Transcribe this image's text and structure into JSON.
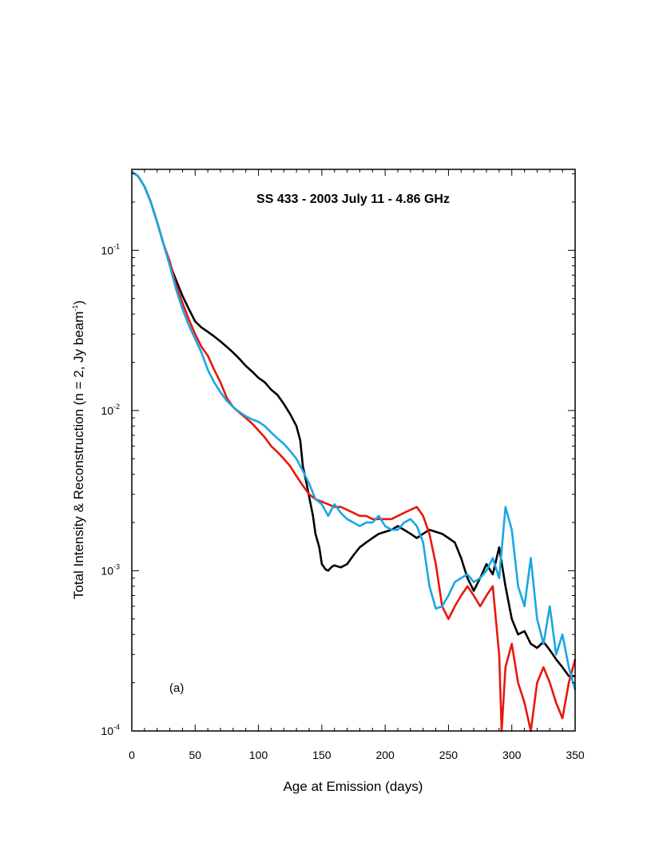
{
  "chart_data": {
    "type": "line",
    "title": "SS 433  -  2003 July 11  -  4.86 GHz",
    "xlabel": "Age at Emission (days)",
    "ylabel_main": "Total Intensity & Reconstruction (n = 2, Jy beam",
    "ylabel_sup": "-1",
    "ylabel_close": ")",
    "annotation": "(a)",
    "xlim": [
      0,
      350
    ],
    "ylim": [
      0.0001,
      0.32
    ],
    "y_scale": "log",
    "x_ticks": [
      0,
      50,
      100,
      150,
      200,
      250,
      300,
      350
    ],
    "x_tick_labels": [
      "0",
      "50",
      "100",
      "150",
      "200",
      "250",
      "300",
      "350"
    ],
    "y_ticks": [
      {
        "value": 0.1,
        "base": "10",
        "exp": "-1"
      },
      {
        "value": 0.01,
        "base": "10",
        "exp": "-2"
      },
      {
        "value": 0.001,
        "base": "10",
        "exp": "-3"
      },
      {
        "value": 0.0001,
        "base": "10",
        "exp": "-4"
      }
    ],
    "series": [
      {
        "color": "#000000",
        "x": [
          0,
          5,
          10,
          15,
          20,
          25,
          30,
          35,
          40,
          45,
          50,
          55,
          60,
          65,
          70,
          75,
          80,
          85,
          90,
          95,
          100,
          105,
          110,
          115,
          120,
          125,
          130,
          133,
          135,
          138,
          140,
          143,
          145,
          148,
          150,
          153,
          155,
          158,
          160,
          165,
          170,
          175,
          180,
          185,
          190,
          195,
          200,
          205,
          210,
          215,
          220,
          225,
          230,
          235,
          240,
          245,
          250,
          255,
          260,
          265,
          270,
          275,
          280,
          285,
          290,
          295,
          300,
          305,
          310,
          315,
          320,
          325,
          330,
          335,
          340,
          345,
          350
        ],
        "y": [
          0.31,
          0.29,
          0.25,
          0.2,
          0.15,
          0.11,
          0.082,
          0.065,
          0.052,
          0.043,
          0.036,
          0.033,
          0.031,
          0.029,
          0.027,
          0.025,
          0.023,
          0.021,
          0.019,
          0.0175,
          0.016,
          0.015,
          0.0135,
          0.0125,
          0.011,
          0.0095,
          0.008,
          0.0065,
          0.0045,
          0.0035,
          0.0029,
          0.0022,
          0.0017,
          0.0014,
          0.0011,
          0.00102,
          0.001,
          0.00106,
          0.00108,
          0.00105,
          0.0011,
          0.00125,
          0.0014,
          0.0015,
          0.0016,
          0.0017,
          0.00175,
          0.0018,
          0.0019,
          0.0018,
          0.0017,
          0.0016,
          0.0017,
          0.0018,
          0.00175,
          0.0017,
          0.0016,
          0.0015,
          0.0012,
          0.0009,
          0.00075,
          0.0009,
          0.0011,
          0.00095,
          0.0014,
          0.0008,
          0.0005,
          0.0004,
          0.00042,
          0.00035,
          0.00033,
          0.00036,
          0.00032,
          0.00028,
          0.00025,
          0.00022,
          0.00022
        ]
      },
      {
        "color": "#e8170d",
        "x": [
          0,
          5,
          10,
          15,
          20,
          25,
          30,
          35,
          40,
          45,
          50,
          55,
          60,
          65,
          70,
          75,
          80,
          85,
          90,
          95,
          100,
          105,
          110,
          115,
          120,
          125,
          130,
          135,
          140,
          145,
          150,
          155,
          160,
          165,
          170,
          175,
          180,
          185,
          190,
          195,
          200,
          205,
          210,
          215,
          220,
          225,
          230,
          235,
          240,
          245,
          250,
          255,
          260,
          265,
          270,
          275,
          280,
          285,
          290,
          292,
          295,
          300,
          305,
          310,
          315,
          320,
          325,
          330,
          335,
          340,
          345,
          350
        ],
        "y": [
          0.31,
          0.29,
          0.25,
          0.2,
          0.15,
          0.11,
          0.085,
          0.06,
          0.047,
          0.037,
          0.03,
          0.025,
          0.022,
          0.018,
          0.015,
          0.012,
          0.0105,
          0.0097,
          0.009,
          0.0083,
          0.0075,
          0.0068,
          0.006,
          0.0055,
          0.005,
          0.0045,
          0.0039,
          0.0034,
          0.003,
          0.0028,
          0.0027,
          0.0026,
          0.0025,
          0.0025,
          0.0024,
          0.0023,
          0.0022,
          0.0022,
          0.0021,
          0.0021,
          0.0021,
          0.0021,
          0.0022,
          0.0023,
          0.0024,
          0.0025,
          0.0022,
          0.0017,
          0.0011,
          0.0006,
          0.0005,
          0.0006,
          0.0007,
          0.0008,
          0.0007,
          0.0006,
          0.0007,
          0.0008,
          0.0003,
          0.0001,
          0.00025,
          0.00035,
          0.0002,
          0.00015,
          0.0001,
          0.0002,
          0.00025,
          0.0002,
          0.00015,
          0.00012,
          0.0002,
          0.00028
        ]
      },
      {
        "color": "#1ba6e4",
        "x": [
          0,
          5,
          10,
          15,
          20,
          25,
          30,
          35,
          40,
          45,
          50,
          55,
          60,
          65,
          70,
          75,
          80,
          85,
          90,
          95,
          100,
          105,
          110,
          115,
          120,
          125,
          130,
          135,
          140,
          145,
          150,
          155,
          160,
          165,
          170,
          175,
          180,
          185,
          190,
          195,
          200,
          205,
          210,
          215,
          220,
          225,
          230,
          235,
          240,
          245,
          250,
          255,
          260,
          265,
          270,
          275,
          280,
          285,
          290,
          295,
          300,
          305,
          310,
          315,
          320,
          325,
          330,
          335,
          340,
          345,
          350
        ],
        "y": [
          0.31,
          0.29,
          0.25,
          0.2,
          0.15,
          0.11,
          0.08,
          0.057,
          0.043,
          0.034,
          0.028,
          0.023,
          0.018,
          0.015,
          0.013,
          0.0115,
          0.0105,
          0.0098,
          0.0092,
          0.0088,
          0.0085,
          0.008,
          0.0073,
          0.0067,
          0.0062,
          0.0056,
          0.005,
          0.0042,
          0.0035,
          0.0028,
          0.0026,
          0.0022,
          0.0026,
          0.0023,
          0.0021,
          0.002,
          0.0019,
          0.002,
          0.002,
          0.0022,
          0.0019,
          0.0018,
          0.0018,
          0.002,
          0.0021,
          0.0019,
          0.0015,
          0.0008,
          0.00058,
          0.0006,
          0.0007,
          0.00085,
          0.0009,
          0.00095,
          0.00085,
          0.0009,
          0.001,
          0.0012,
          0.0009,
          0.0025,
          0.0018,
          0.0008,
          0.0006,
          0.0012,
          0.0005,
          0.00035,
          0.0006,
          0.0003,
          0.0004,
          0.00025,
          0.00018
        ]
      }
    ]
  }
}
